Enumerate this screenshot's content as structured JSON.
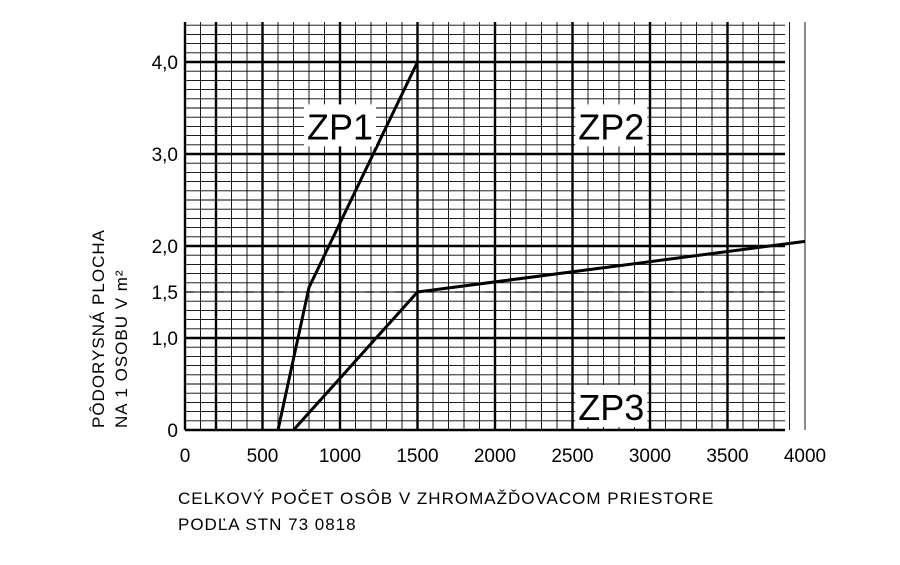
{
  "chart_data": {
    "type": "line",
    "xlabel_lines": [
      "CELKOVÝ POČET OSÔB V ZHROMAŽĎOVACOM PRIESTORE",
      "PODĽA STN 73 0818"
    ],
    "ylabel_lines": [
      "PÔDORYSNÁ PLOCHA",
      "NA 1 OSOBU V m²"
    ],
    "xlim": [
      0,
      4000
    ],
    "ylim": [
      0,
      4.0
    ],
    "x_ticks": [
      {
        "value": 0,
        "label": "0"
      },
      {
        "value": 500,
        "label": "500"
      },
      {
        "value": 1000,
        "label": "1000"
      },
      {
        "value": 1500,
        "label": "1500"
      },
      {
        "value": 2000,
        "label": "2000"
      },
      {
        "value": 2500,
        "label": "2500"
      },
      {
        "value": 3000,
        "label": "3000"
      },
      {
        "value": 3500,
        "label": "3500"
      },
      {
        "value": 4000,
        "label": "4000"
      }
    ],
    "y_ticks": [
      {
        "value": 0,
        "label": "0"
      },
      {
        "value": 1.0,
        "label": "1,0"
      },
      {
        "value": 1.5,
        "label": "1,5"
      },
      {
        "value": 2.0,
        "label": "2,0"
      },
      {
        "value": 3.0,
        "label": "3,0"
      },
      {
        "value": 4.0,
        "label": "4,0"
      }
    ],
    "grid": true,
    "grid_minor_x_step": 100,
    "grid_minor_y_step": 0.1,
    "series": [
      {
        "id": "upper",
        "x": [
          600,
          800,
          1500
        ],
        "y": [
          0,
          1.55,
          4.0
        ]
      },
      {
        "id": "lower",
        "x": [
          700,
          1500,
          4000
        ],
        "y": [
          0,
          1.5,
          2.05
        ]
      }
    ],
    "reference_lines": [
      {
        "orientation": "horizontal",
        "value": 1.5,
        "style": "dashed"
      }
    ],
    "zone_labels": [
      {
        "text": "ZP1",
        "x": 1000,
        "y": 3.3
      },
      {
        "text": "ZP2",
        "x": 2750,
        "y": 3.3
      },
      {
        "text": "ZP3",
        "x": 2750,
        "y": 0.25
      }
    ]
  }
}
